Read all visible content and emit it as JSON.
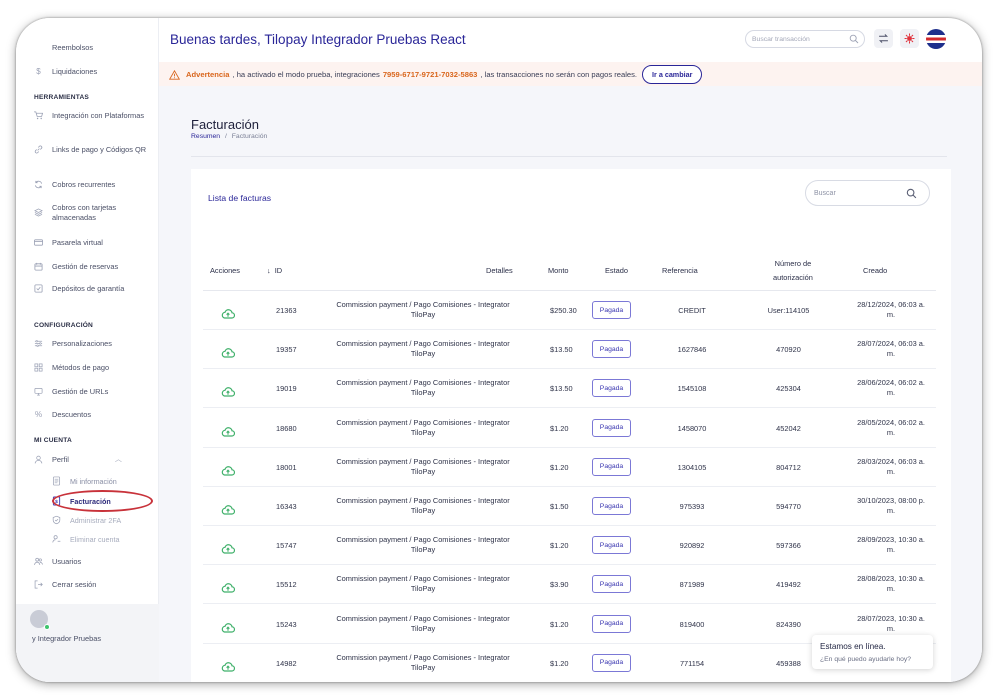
{
  "header": {
    "greeting": "Buenas tardes, Tilopay Integrador Pruebas React",
    "search_placeholder": "Buscar transacción"
  },
  "warning": {
    "label": "Advertencia",
    "text_before": ", ha activado el modo prueba, integraciones",
    "integration_id": "7959-6717-9721-7032-5863",
    "text_after": ", las transacciones no serán con pagos reales.",
    "button": "Ir a cambiar"
  },
  "sidebar": {
    "top_items": [
      {
        "label": "Reembolsos",
        "icon": "refund-icon"
      },
      {
        "label": "Liquidaciones",
        "icon": "dollar-icon"
      }
    ],
    "herramientas_title": "HERRAMIENTAS",
    "herramientas": [
      {
        "label": "Integración con Plataformas",
        "icon": "cart-icon"
      },
      {
        "label": "Links de pago y Códigos QR",
        "icon": "link-icon"
      },
      {
        "label": "Cobros recurrentes",
        "icon": "recurring-icon"
      },
      {
        "label": "Cobros con tarjetas almacenadas",
        "icon": "layers-icon"
      },
      {
        "label": "Pasarela virtual",
        "icon": "card-icon"
      },
      {
        "label": "Gestión de reservas",
        "icon": "calendar-icon"
      },
      {
        "label": "Depósitos de garantía",
        "icon": "check-square-icon"
      }
    ],
    "configuracion_title": "CONFIGURACIÓN",
    "configuracion": [
      {
        "label": "Personalizaciones",
        "icon": "sliders-icon"
      },
      {
        "label": "Métodos de pago",
        "icon": "grid-icon"
      },
      {
        "label": "Gestión de URLs",
        "icon": "monitor-icon"
      },
      {
        "label": "Descuentos",
        "icon": "percent-icon"
      }
    ],
    "micuenta_title": "MI CUENTA",
    "perfil": "Perfil",
    "perfil_sub": [
      {
        "label": "Mi información",
        "icon": "document-icon"
      },
      {
        "label": "Facturación",
        "icon": "invoice-icon"
      },
      {
        "label": "Administrar 2FA",
        "icon": "shield-icon"
      },
      {
        "label": "Eliminar cuenta",
        "icon": "user-remove-icon"
      }
    ],
    "usuarios": "Usuarios",
    "cerrar": "Cerrar sesión",
    "user_name": "y Integrador Pruebas"
  },
  "page": {
    "title": "Facturación",
    "breadcrumb_home": "Resumen",
    "breadcrumb_sep": "/",
    "breadcrumb_current": "Facturación"
  },
  "card": {
    "title": "Lista de facturas",
    "search_placeholder": "Buscar"
  },
  "table": {
    "headers": {
      "acciones": "Acciones",
      "id": "ID",
      "detalles": "Detalles",
      "monto": "Monto",
      "estado": "Estado",
      "referencia": "Referencia",
      "autorizacion_1": "Número de",
      "autorizacion_2": "autorización",
      "creado": "Creado"
    },
    "rows": [
      {
        "id": "21363",
        "det1": "Commission payment / Pago Comisiones - Integrator",
        "det2": "TiloPay",
        "monto": "$250.30",
        "estado": "Pagada",
        "ref": "CREDIT",
        "auth": "User:114105",
        "c1": "28/12/2024, 06:03 a.",
        "c2": "m."
      },
      {
        "id": "19357",
        "det1": "Commission payment / Pago Comisiones - Integrator",
        "det2": "TiloPay",
        "monto": "$13.50",
        "estado": "Pagada",
        "ref": "1627846",
        "auth": "470920",
        "c1": "28/07/2024, 06:03 a.",
        "c2": "m."
      },
      {
        "id": "19019",
        "det1": "Commission payment / Pago Comisiones - Integrator",
        "det2": "TiloPay",
        "monto": "$13.50",
        "estado": "Pagada",
        "ref": "1545108",
        "auth": "425304",
        "c1": "28/06/2024, 06:02 a.",
        "c2": "m."
      },
      {
        "id": "18680",
        "det1": "Commission payment / Pago Comisiones - Integrator",
        "det2": "TiloPay",
        "monto": "$1.20",
        "estado": "Pagada",
        "ref": "1458070",
        "auth": "452042",
        "c1": "28/05/2024, 06:02 a.",
        "c2": "m."
      },
      {
        "id": "18001",
        "det1": "Commission payment / Pago Comisiones - Integrator",
        "det2": "TiloPay",
        "monto": "$1.20",
        "estado": "Pagada",
        "ref": "1304105",
        "auth": "804712",
        "c1": "28/03/2024, 06:03 a.",
        "c2": "m."
      },
      {
        "id": "16343",
        "det1": "Commission payment / Pago Comisiones - Integrator",
        "det2": "TiloPay",
        "monto": "$1.50",
        "estado": "Pagada",
        "ref": "975393",
        "auth": "594770",
        "c1": "30/10/2023, 08:00 p.",
        "c2": "m."
      },
      {
        "id": "15747",
        "det1": "Commission payment / Pago Comisiones - Integrator",
        "det2": "TiloPay",
        "monto": "$1.20",
        "estado": "Pagada",
        "ref": "920892",
        "auth": "597366",
        "c1": "28/09/2023, 10:30 a.",
        "c2": "m."
      },
      {
        "id": "15512",
        "det1": "Commission payment / Pago Comisiones - Integrator",
        "det2": "TiloPay",
        "monto": "$3.90",
        "estado": "Pagada",
        "ref": "871989",
        "auth": "419492",
        "c1": "28/08/2023, 10:30 a.",
        "c2": "m."
      },
      {
        "id": "15243",
        "det1": "Commission payment / Pago Comisiones - Integrator",
        "det2": "TiloPay",
        "monto": "$1.20",
        "estado": "Pagada",
        "ref": "819400",
        "auth": "824390",
        "c1": "28/07/2023, 10:30 a.",
        "c2": "m."
      },
      {
        "id": "14982",
        "det1": "Commission payment / Pago Comisiones - Integrator",
        "det2": "TiloPay",
        "monto": "$1.20",
        "estado": "Pagada",
        "ref": "771154",
        "auth": "459388",
        "c1": "",
        "c2": ""
      }
    ]
  },
  "chat": {
    "title": "Estamos en línea.",
    "subtitle": "¿En qué puedo ayudarle hoy?"
  },
  "colors": {
    "brand": "#2a2698",
    "warning": "#d9661d",
    "success": "#3fb06a",
    "highlight_ellipse": "#c8323a"
  }
}
